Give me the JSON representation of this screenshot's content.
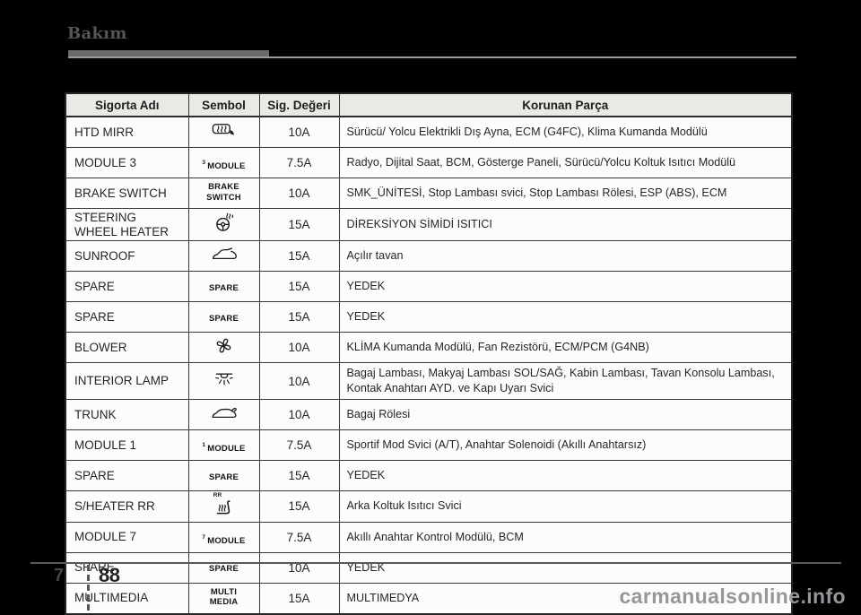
{
  "page": {
    "section_title": "Bakım",
    "footer": {
      "chapter_number": "7",
      "page_number": "88",
      "watermark": "carmanualsonline.info"
    }
  },
  "colors": {
    "page_bg": "#000000",
    "table_bg": "#fcfcfa",
    "header_bg": "#e9e9e6",
    "border": "#3a3a3a",
    "title": "#55555a",
    "rule": "#6b6b6e",
    "watermark": "#97979b",
    "footer_text": "#48484c",
    "page_number": "#232327"
  },
  "table": {
    "headers": [
      "Sigorta Adı",
      "Sembol",
      "Sig. Değeri",
      "Korunan Parça"
    ],
    "rows": [
      {
        "name": "HTD MIRR",
        "symbol": {
          "type": "icon",
          "icon": "heated-mirror"
        },
        "rating": "10A",
        "protected": "Sürücü/ Yolcu Elektrikli Dış Ayna, ECM (G4FC), Klima Kumanda Modülü"
      },
      {
        "name": "MODULE 3",
        "symbol": {
          "type": "text",
          "sup": "3",
          "lines": [
            "MODULE"
          ]
        },
        "rating": "7.5A",
        "protected": "Radyo, Dijital Saat, BCM, Gösterge Paneli, Sürücü/Yolcu Koltuk Isıtıcı Modülü"
      },
      {
        "name": "BRAKE SWITCH",
        "symbol": {
          "type": "text",
          "lines": [
            "BRAKE",
            "SWITCH"
          ]
        },
        "rating": "10A",
        "protected": "SMK_ÜNİTESİ, Stop Lambası svici, Stop Lambası Rölesi, ESP (ABS), ECM"
      },
      {
        "name": "STEERING WHEEL HEATER",
        "symbol": {
          "type": "icon",
          "icon": "steering-wheel-heater"
        },
        "rating": "15A",
        "protected": "DİREKSİYON SİMİDİ ISITICI"
      },
      {
        "name": "SUNROOF",
        "symbol": {
          "type": "icon",
          "icon": "sunroof"
        },
        "rating": "15A",
        "protected": "Açılır tavan"
      },
      {
        "name": "SPARE",
        "symbol": {
          "type": "text",
          "lines": [
            "SPARE"
          ]
        },
        "rating": "15A",
        "protected": "YEDEK"
      },
      {
        "name": "SPARE",
        "symbol": {
          "type": "text",
          "lines": [
            "SPARE"
          ]
        },
        "rating": "15A",
        "protected": "YEDEK"
      },
      {
        "name": "BLOWER",
        "symbol": {
          "type": "icon",
          "icon": "blower-fan"
        },
        "rating": "10A",
        "protected": "KLİMA Kumanda Modülü, Fan Rezistörü, ECM/PCM (G4NB)"
      },
      {
        "name": "INTERIOR LAMP",
        "symbol": {
          "type": "icon",
          "icon": "interior-lamp"
        },
        "rating": "10A",
        "protected": "Bagaj Lambası, Makyaj Lambası SOL/SAĞ, Kabin Lambası, Tavan Konsolu Lambası, Kontak Anahtarı AYD. ve Kapı Uyarı Svici"
      },
      {
        "name": "TRUNK",
        "symbol": {
          "type": "icon",
          "icon": "trunk"
        },
        "rating": "10A",
        "protected": "Bagaj Rölesi"
      },
      {
        "name": "MODULE 1",
        "symbol": {
          "type": "text",
          "sup": "1",
          "lines": [
            "MODULE"
          ]
        },
        "rating": "7.5A",
        "protected": "Sportif Mod Svici (A/T), Anahtar Solenoidi (Akıllı Anahtarsız)"
      },
      {
        "name": "SPARE",
        "symbol": {
          "type": "text",
          "lines": [
            "SPARE"
          ]
        },
        "rating": "15A",
        "protected": "YEDEK"
      },
      {
        "name": "S/HEATER RR",
        "symbol": {
          "type": "icon",
          "icon": "seat-heater",
          "label": "RR"
        },
        "rating": "15A",
        "protected": "Arka Koltuk Isıtıcı Svici"
      },
      {
        "name": "MODULE 7",
        "symbol": {
          "type": "text",
          "sup": "7",
          "lines": [
            "MODULE"
          ]
        },
        "rating": "7.5A",
        "protected": "Akıllı Anahtar Kontrol Modülü, BCM"
      },
      {
        "name": "SPARE",
        "symbol": {
          "type": "text",
          "lines": [
            "SPARE"
          ]
        },
        "rating": "10A",
        "protected": "YEDEK"
      },
      {
        "name": "MULTIMEDIA",
        "symbol": {
          "type": "text",
          "lines": [
            "MULTI",
            "MEDIA"
          ]
        },
        "rating": "15A",
        "protected": "MULTIMEDYA"
      }
    ]
  }
}
